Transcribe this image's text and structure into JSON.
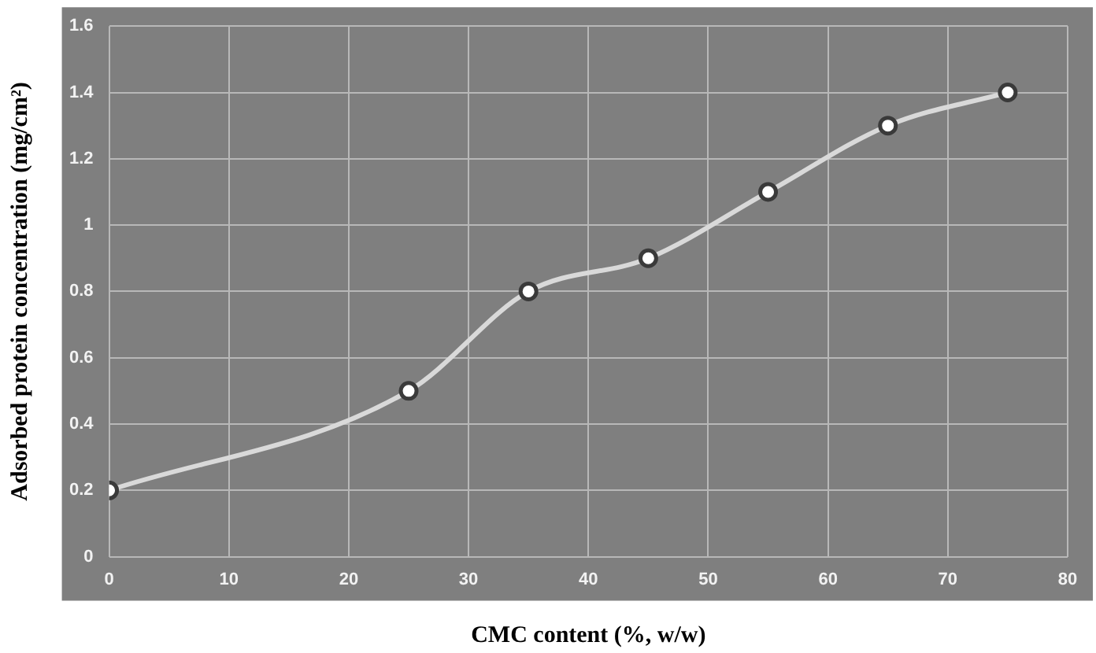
{
  "chart_data": {
    "type": "line",
    "xlabel": "CMC content (%, w/w)",
    "ylabel": "Adsorbed protein concentration (mg/cm²)",
    "x": [
      0,
      25,
      35,
      45,
      55,
      65,
      75
    ],
    "series": [
      {
        "color": "#d9d9d9",
        "values": [
          0.2,
          0.5,
          0.8,
          0.9,
          1.1,
          1.3,
          1.4
        ]
      }
    ],
    "xlim": [
      0,
      80
    ],
    "xticks": [
      0,
      10,
      20,
      30,
      40,
      50,
      60,
      70,
      80
    ],
    "ylim": [
      0,
      1.6
    ],
    "yticks": [
      0,
      0.2,
      0.4,
      0.6,
      0.8,
      1,
      1.2,
      1.4,
      1.6
    ],
    "grid": true,
    "legend": false,
    "marker": "circle",
    "line_style": "solid"
  }
}
